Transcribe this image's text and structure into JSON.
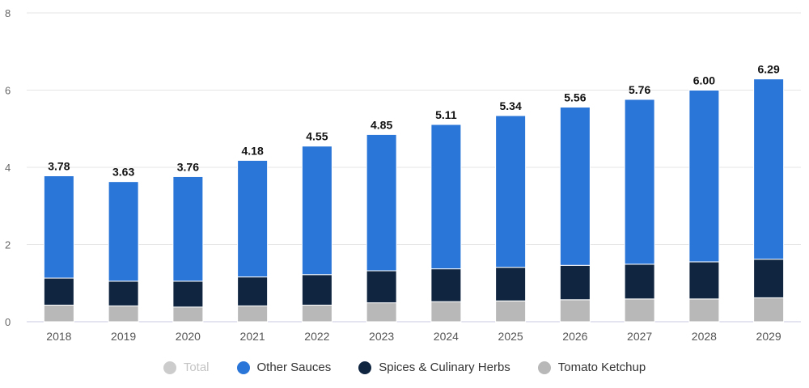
{
  "chart_data": {
    "type": "bar",
    "stacked": true,
    "categories": [
      "2018",
      "2019",
      "2020",
      "2021",
      "2022",
      "2023",
      "2024",
      "2025",
      "2026",
      "2027",
      "2028",
      "2029"
    ],
    "series": [
      {
        "name": "Tomato Ketchup",
        "color": "#b8b8b8",
        "values": [
          0.43,
          0.41,
          0.38,
          0.41,
          0.43,
          0.49,
          0.52,
          0.54,
          0.57,
          0.59,
          0.59,
          0.62
        ]
      },
      {
        "name": "Spices & Culinary Herbs",
        "color": "#0f2540",
        "values": [
          0.7,
          0.64,
          0.67,
          0.75,
          0.79,
          0.83,
          0.85,
          0.87,
          0.89,
          0.9,
          0.96,
          1.0
        ]
      },
      {
        "name": "Other Sauces",
        "color": "#2a75d8",
        "values": [
          2.65,
          2.58,
          2.71,
          3.02,
          3.33,
          3.53,
          3.74,
          3.93,
          4.1,
          4.27,
          4.45,
          4.67
        ]
      }
    ],
    "totals": [
      "3.78",
      "3.63",
      "3.76",
      "4.18",
      "4.55",
      "4.85",
      "5.11",
      "5.34",
      "5.56",
      "5.76",
      "6.00",
      "6.29"
    ],
    "yticks": [
      "0",
      "2",
      "4",
      "6",
      "8"
    ],
    "ylim": [
      0,
      8
    ],
    "grid": true,
    "legend_position": "bottom",
    "legend": [
      {
        "label": "Total",
        "color": "#cccccc",
        "muted": true
      },
      {
        "label": "Other Sauces",
        "color": "#2a75d8",
        "muted": false
      },
      {
        "label": "Spices & Culinary Herbs",
        "color": "#0f2540",
        "muted": false
      },
      {
        "label": "Tomato Ketchup",
        "color": "#b8b8b8",
        "muted": false
      }
    ]
  }
}
